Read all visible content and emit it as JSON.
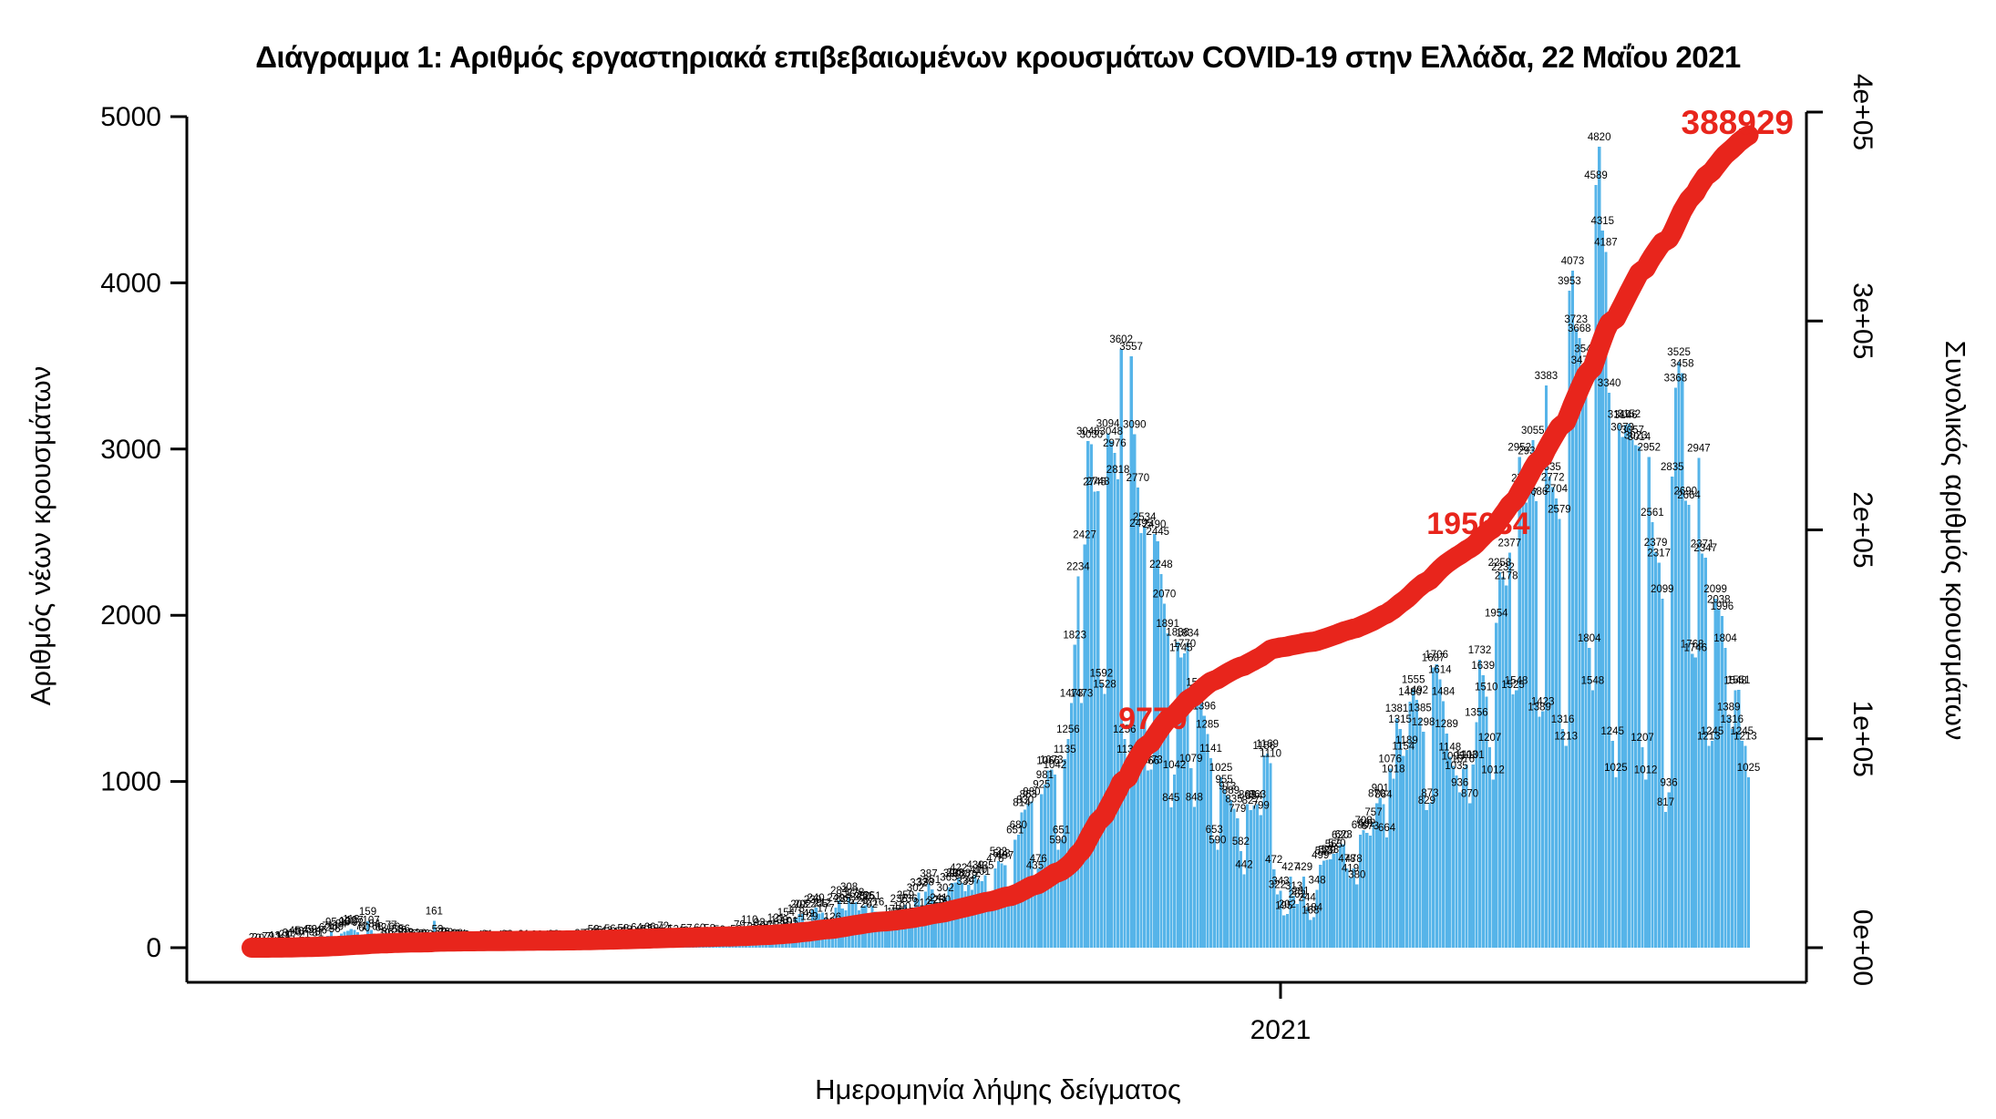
{
  "title": "Διάγραμμα 1: Αριθμός εργαστηριακά επιβεβαιωμένων κρουσμάτων COVID-19 στην Ελλάδα, 22 Μαΐου 2021",
  "colors": {
    "bars": "#56b4e9",
    "line": "#e8251c",
    "text": "#000000",
    "annotation": "#e8251c"
  },
  "chart_data": {
    "type": "bar+line",
    "title": "Διάγραμμα 1: Αριθμός εργαστηριακά επιβεβαιωμένων κρουσμάτων COVID-19 στην Ελλάδα, 22 Μαΐου 2021",
    "xlabel": "Ημερομηνία λήψης δείγματος",
    "ylabel_left": "Αριθμός νέων κρουσμάτων",
    "ylabel_right": "Συνολικός αριθμός κρουσμάτων",
    "ylim_left": [
      0,
      5000
    ],
    "ylim_right": [
      0,
      400000
    ],
    "y_left_ticks": [
      0,
      1000,
      2000,
      3000,
      4000,
      5000
    ],
    "y_right_ticks": [
      "0e+00",
      "1e+05",
      "2e+05",
      "3e+05",
      "4e+05"
    ],
    "x_tick_labels": [
      "2021"
    ],
    "grid": false,
    "legend": "none",
    "bar_series_name": "Αριθμός νέων κρουσμάτων (ημερήσια)",
    "line_series_name": "Συνολικός αριθμός κρουσμάτων (αθροιστικά)",
    "line_final_total": 388929,
    "annotations": [
      {
        "id": "milestone-1",
        "label": "9770"
      },
      {
        "id": "milestone-2",
        "label": "195634"
      },
      {
        "id": "final-total",
        "label": "388929"
      }
    ],
    "daily_values_by_month": {
      "2020-02": [
        2,
        2,
        0,
        0
      ],
      "2020-03": [
        7,
        7,
        9,
        13,
        3,
        10,
        21,
        31,
        17,
        45,
        40,
        37,
        21,
        49,
        52,
        35,
        31,
        46,
        62,
        71,
        95,
        56,
        69,
        84,
        96,
        102,
        113,
        107,
        92,
        71,
        60
      ],
      "2020-04": [
        159,
        107,
        84,
        68,
        62,
        30,
        36,
        77,
        66,
        53,
        46,
        56,
        33,
        25,
        31,
        15,
        28,
        26,
        22,
        12,
        161,
        53,
        39,
        36,
        32,
        21,
        17,
        28,
        24,
        19
      ],
      "2020-05": [
        15,
        12,
        10,
        6,
        9,
        18,
        21,
        14,
        12,
        8,
        15,
        19,
        23,
        11,
        9,
        14,
        17,
        21,
        12,
        10,
        16,
        20,
        13,
        9,
        11,
        19,
        23,
        18,
        14,
        10,
        12
      ],
      "2020-06": [
        8,
        15,
        20,
        27,
        14,
        19,
        30,
        52,
        46,
        32,
        21,
        43,
        56,
        31,
        24,
        39,
        58,
        48,
        27,
        34,
        64,
        43,
        29,
        52,
        66,
        58,
        41,
        37,
        72,
        54
      ],
      "2020-07": [
        31,
        52,
        24,
        28,
        43,
        57,
        36,
        25,
        41,
        60,
        33,
        27,
        58,
        35,
        29,
        50,
        31,
        43,
        26,
        34,
        52,
        79,
        27,
        32,
        110,
        65,
        58,
        93,
        78,
        65,
        54
      ],
      "2020-08": [
        75,
        121,
        108,
        88,
        154,
        101,
        95,
        175,
        203,
        202,
        149,
        129,
        230,
        240,
        205,
        212,
        177,
        98,
        126,
        240,
        284,
        235,
        225,
        308,
        262,
        273,
        226,
        250,
        256,
        202,
        251
      ],
      "2020-09": [
        216,
        99,
        129,
        98,
        126,
        173,
        155,
        236,
        190,
        259,
        236,
        155,
        302,
        332,
        212,
        338,
        387,
        351,
        225,
        241,
        230,
        302,
        365,
        390,
        393,
        422,
        388,
        339,
        379,
        347
      ],
      "2020-10": [
        439,
        410,
        401,
        435,
        230,
        241,
        476,
        522,
        508,
        497,
        260,
        269,
        651,
        680,
        814,
        830,
        863,
        880,
        435,
        476,
        925,
        981,
        1066,
        1073,
        1042,
        590,
        651,
        1135,
        1256,
        1473,
        1823
      ],
      "2020-11": [
        2234,
        1473,
        2427,
        3048,
        3030,
        2745,
        2748,
        1592,
        1528,
        3094,
        3048,
        2976,
        2818,
        3602,
        1256,
        1135,
        3557,
        3090,
        2770,
        2495,
        2534,
        1066,
        1073,
        2490,
        2445,
        2248,
        2070,
        1891,
        845,
        1042
      ],
      "2020-12": [
        1838,
        1745,
        1770,
        1834,
        1079,
        848,
        1538,
        1500,
        1396,
        1285,
        1141,
        653,
        590,
        1025,
        955,
        913,
        889,
        835,
        779,
        582,
        442,
        863,
        827,
        854,
        863,
        799,
        1156,
        1169,
        1110,
        472,
        322
      ],
      "2021-01": [
        343,
        195,
        202,
        427,
        313,
        262,
        281,
        429,
        244,
        168,
        184,
        348,
        499,
        523,
        529,
        533,
        565,
        570,
        620,
        623,
        478,
        419,
        478,
        380,
        680,
        708,
        692,
        673,
        757,
        870,
        901
      ],
      "2021-02": [
        864,
        664,
        1076,
        1018,
        1381,
        1315,
        1154,
        1189,
        1480,
        1555,
        1492,
        1385,
        1298,
        829,
        873,
        1687,
        1706,
        1614,
        1484,
        1289,
        1148,
        1095,
        1035,
        936,
        1076,
        1103,
        870,
        1101
      ],
      "2021-03": [
        1356,
        1732,
        1639,
        1510,
        1207,
        1012,
        1954,
        2258,
        2232,
        2178,
        2377,
        1525,
        1548,
        2952,
        2765,
        2677,
        2930,
        3055,
        2686,
        1389,
        1423,
        3383,
        2835,
        2772,
        2704,
        2579,
        1316,
        1213,
        3953,
        4073,
        3723
      ],
      "2021-04": [
        3668,
        3476,
        3545,
        1804,
        1548,
        4589,
        4820,
        4315,
        4187,
        3340,
        1245,
        1025,
        3149,
        3073,
        3146,
        3152,
        3057,
        3023,
        3014,
        1207,
        1012,
        2952,
        2561,
        2379,
        2317,
        2099,
        817,
        936,
        2835,
        3368
      ],
      "2021-05": [
        3525,
        3458,
        2690,
        2664,
        1768,
        1746,
        2947,
        2371,
        2347,
        1213,
        1245,
        2099,
        2038,
        1996,
        1804,
        1389,
        1316,
        1548,
        1551,
        1245,
        1213,
        1025
      ]
    }
  }
}
